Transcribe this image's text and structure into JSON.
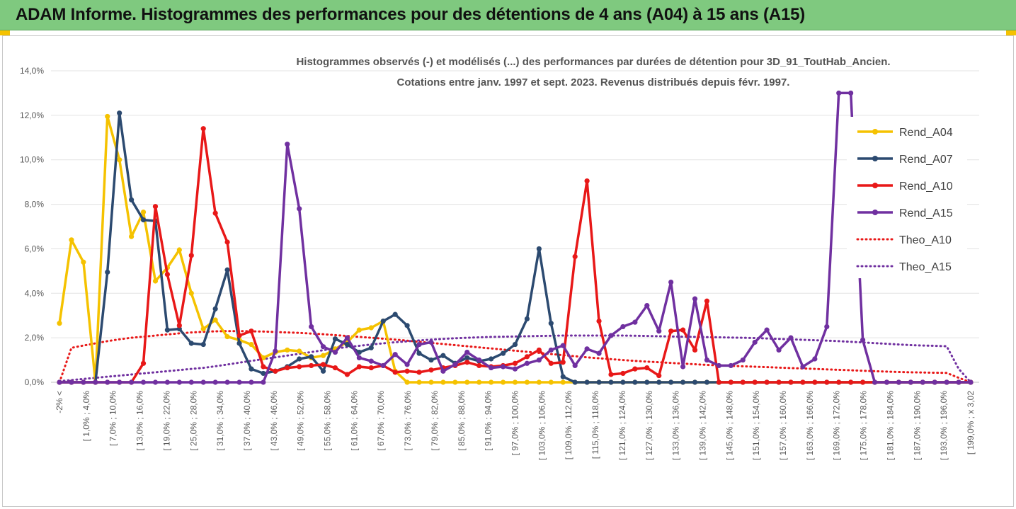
{
  "header": {
    "title": "ADAM Informe. Histogrammes des performances pour des détentions de 4 ans (A04) à 15 ans (A15)",
    "bar_color": "#7fc97f",
    "corner_color": "#f5c200"
  },
  "chart_data": {
    "type": "line",
    "title_line1": "Histogrammes observés (-) et modélisés (...)  des performances par durées de détention pour 3D_91_ToutHab_Ancien.",
    "title_line2": "Cotations entre janv. 1997 et sept. 2023. Revenus distribués depuis févr. 1997.",
    "ylim": [
      0,
      14
    ],
    "yticks": [
      "0,0%",
      "2,0%",
      "4,0%",
      "6,0%",
      "8,0%",
      "10,0%",
      "12,0%",
      "14,0%"
    ],
    "grid": true,
    "legend_position": "right",
    "xtick_labels": [
      "-2% <",
      "[ 1,0% ; 4,0%",
      "[ 7,0% ; 10,0%",
      "[ 13,0% ; 16,0%",
      "[ 19,0% ; 22,0%",
      "[ 25,0% ; 28,0%",
      "[ 31,0% ; 34,0%",
      "[ 37,0% ; 40,0%",
      "[ 43,0% ; 46,0%",
      "[ 49,0% ; 52,0%",
      "[ 55,0% ; 58,0%",
      "[ 61,0% ; 64,0%",
      "[ 67,0% ; 70,0%",
      "[ 73,0% ; 76,0%",
      "[ 79,0% ; 82,0%",
      "[ 85,0% ; 88,0%",
      "[ 91,0% ; 94,0%",
      "[ 97,0% ; 100,0%",
      "[ 103,0% ; 106,0%",
      "[ 109,0% ; 112,0%",
      "[ 115,0% ; 118,0%",
      "[ 121,0% ; 124,0%",
      "[ 127,0% ; 130,0%",
      "[ 133,0% ; 136,0%",
      "[ 139,0% ; 142,0%",
      "[ 145,0% ; 148,0%",
      "[ 151,0% ; 154,0%",
      "[ 157,0% ; 160,0%",
      "[ 163,0% ; 166,0%",
      "[ 169,0% ; 172,0%",
      "[ 175,0% ; 178,0%",
      "[ 181,0% ; 184,0%",
      "[ 187,0% ; 190,0%",
      "[ 193,0% ; 196,0%",
      "[ 199,0% ; x 3,02"
    ],
    "series": [
      {
        "name": "Rend_A04",
        "color": "#f5c200",
        "style": "solid",
        "values": [
          2.65,
          6.4,
          5.4,
          0,
          11.95,
          10.0,
          6.55,
          7.65,
          4.55,
          5.15,
          5.95,
          4.0,
          2.4,
          2.8,
          2.05,
          1.9,
          1.7,
          1.1,
          1.35,
          1.45,
          1.4,
          1.1,
          1.2,
          1.5,
          1.8,
          2.35,
          2.45,
          2.75,
          0.5,
          0,
          0,
          0,
          0,
          0,
          0,
          0,
          0,
          0,
          0,
          0,
          0,
          0,
          0,
          0,
          0,
          0,
          0,
          0,
          0,
          0,
          0,
          0,
          0,
          0,
          0,
          0,
          0,
          0,
          0,
          0,
          0,
          0,
          0,
          0,
          0,
          0,
          0,
          0,
          0,
          0,
          0,
          0,
          0,
          0,
          0,
          0,
          0
        ]
      },
      {
        "name": "Rend_A07",
        "color": "#2c4a70",
        "style": "solid",
        "values": [
          0,
          0,
          0,
          0,
          4.95,
          12.1,
          8.2,
          7.3,
          7.25,
          2.35,
          2.4,
          1.75,
          1.7,
          3.3,
          5.05,
          1.75,
          0.6,
          0.4,
          0.5,
          0.7,
          1.05,
          1.15,
          0.5,
          1.95,
          1.7,
          1.35,
          1.55,
          2.75,
          3.05,
          2.55,
          1.3,
          1.0,
          1.2,
          0.85,
          1.1,
          0.95,
          1.05,
          1.3,
          1.7,
          2.85,
          6.0,
          2.65,
          0.25,
          0,
          0,
          0,
          0,
          0,
          0,
          0,
          0,
          0,
          0,
          0,
          0,
          0,
          0,
          0,
          0,
          0,
          0,
          0,
          0,
          0,
          0,
          0,
          0,
          0,
          0,
          0,
          0,
          0,
          0,
          0,
          0,
          0,
          0
        ]
      },
      {
        "name": "Rend_A10",
        "color": "#e81818",
        "style": "solid",
        "values": [
          0,
          0,
          0,
          0,
          0,
          0,
          0,
          0.85,
          7.9,
          4.85,
          2.55,
          5.7,
          11.4,
          7.6,
          6.3,
          2.1,
          2.3,
          0.7,
          0.5,
          0.65,
          0.7,
          0.75,
          0.8,
          0.65,
          0.35,
          0.7,
          0.65,
          0.75,
          0.45,
          0.5,
          0.45,
          0.55,
          0.65,
          0.75,
          0.9,
          0.75,
          0.7,
          0.75,
          0.85,
          1.15,
          1.45,
          0.85,
          0.9,
          5.65,
          9.05,
          2.75,
          0.35,
          0.4,
          0.6,
          0.65,
          0.3,
          2.3,
          2.35,
          1.45,
          3.65,
          0,
          0,
          0,
          0,
          0,
          0,
          0,
          0,
          0,
          0,
          0,
          0,
          0,
          0,
          0,
          0,
          0,
          0,
          0,
          0,
          0,
          0
        ]
      },
      {
        "name": "Rend_A15",
        "color": "#7030a0",
        "style": "solid",
        "values": [
          0,
          0,
          0,
          0,
          0,
          0,
          0,
          0,
          0,
          0,
          0,
          0,
          0,
          0,
          0,
          0,
          0,
          0,
          1.4,
          10.7,
          7.8,
          2.5,
          1.6,
          1.35,
          2.0,
          1.1,
          0.95,
          0.75,
          1.25,
          0.8,
          1.7,
          1.8,
          0.5,
          0.8,
          1.35,
          1.0,
          0.65,
          0.7,
          0.6,
          0.85,
          1.0,
          1.45,
          1.65,
          0.75,
          1.5,
          1.3,
          2.1,
          2.5,
          2.7,
          3.45,
          2.3,
          4.5,
          0.7,
          3.75,
          1.0,
          0.75,
          0.75,
          1.0,
          1.8,
          2.35,
          1.45,
          2.0,
          0.7,
          1.05,
          2.5,
          13.0,
          13.0,
          1.9,
          0,
          0,
          0,
          0,
          0,
          0,
          0,
          0,
          0
        ]
      },
      {
        "name": "Theo_A10",
        "color": "#e81818",
        "style": "dotted",
        "values": [
          0,
          1.55,
          1.65,
          1.75,
          1.85,
          1.93,
          2.0,
          2.05,
          2.1,
          2.15,
          2.2,
          2.24,
          2.27,
          2.29,
          2.3,
          2.3,
          2.29,
          2.28,
          2.26,
          2.24,
          2.22,
          2.19,
          2.16,
          2.12,
          2.08,
          2.04,
          2.0,
          1.96,
          1.92,
          1.87,
          1.82,
          1.77,
          1.72,
          1.67,
          1.62,
          1.57,
          1.52,
          1.47,
          1.42,
          1.37,
          1.32,
          1.27,
          1.22,
          1.17,
          1.12,
          1.08,
          1.04,
          1.0,
          0.96,
          0.93,
          0.9,
          0.87,
          0.84,
          0.81,
          0.78,
          0.76,
          0.74,
          0.72,
          0.7,
          0.68,
          0.66,
          0.64,
          0.62,
          0.6,
          0.58,
          0.56,
          0.54,
          0.52,
          0.5,
          0.48,
          0.46,
          0.45,
          0.44,
          0.43,
          0.42,
          0.2,
          0
        ]
      },
      {
        "name": "Theo_A15",
        "color": "#7030a0",
        "style": "dotted",
        "values": [
          0.05,
          0.1,
          0.15,
          0.2,
          0.25,
          0.3,
          0.35,
          0.4,
          0.45,
          0.5,
          0.55,
          0.6,
          0.65,
          0.72,
          0.8,
          0.88,
          0.96,
          1.04,
          1.12,
          1.2,
          1.28,
          1.36,
          1.44,
          1.52,
          1.58,
          1.64,
          1.7,
          1.75,
          1.8,
          1.84,
          1.88,
          1.92,
          1.95,
          1.98,
          2.0,
          2.02,
          2.04,
          2.05,
          2.06,
          2.07,
          2.08,
          2.09,
          2.1,
          2.1,
          2.1,
          2.1,
          2.1,
          2.1,
          2.09,
          2.08,
          2.07,
          2.06,
          2.05,
          2.04,
          2.03,
          2.02,
          2.01,
          2.0,
          1.99,
          1.97,
          1.95,
          1.93,
          1.91,
          1.89,
          1.87,
          1.85,
          1.82,
          1.79,
          1.76,
          1.73,
          1.7,
          1.67,
          1.65,
          1.64,
          1.62,
          0.6,
          0
        ]
      }
    ]
  }
}
